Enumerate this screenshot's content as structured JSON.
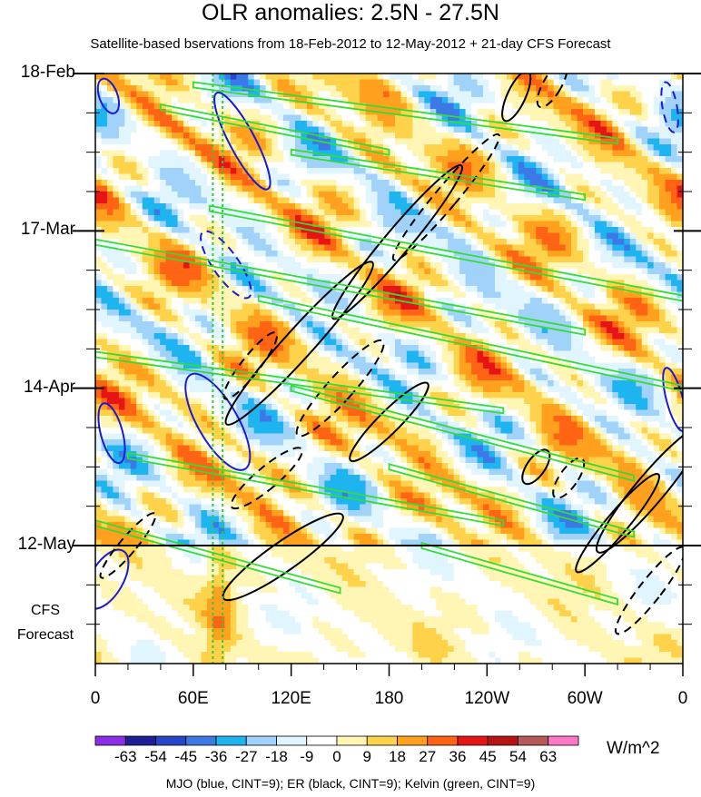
{
  "chart_data": {
    "type": "heatmap",
    "title": "OLR anomalies: 2.5N - 27.5N",
    "subtitle": "Satellite-based bservations from 18-Feb-2012 to 12-May-2012 + 21-day CFS Forecast",
    "y_tick_labels": [
      "18-Feb",
      "17-Mar",
      "14-Apr",
      "12-May"
    ],
    "forecast_label_lines": [
      "CFS",
      "Forecast"
    ],
    "x_tick_labels": [
      "0",
      "60E",
      "120E",
      "180",
      "120W",
      "60W",
      "0"
    ],
    "x_ticks_deg": [
      0,
      60,
      120,
      180,
      240,
      300,
      360
    ],
    "y_ticks_day": [
      0,
      28,
      56,
      84
    ],
    "y_range_days": [
      0,
      105
    ],
    "x_range_deg": [
      0,
      360
    ],
    "observation_end_day": 84,
    "colorbar": {
      "colors": [
        "#8c2ee6",
        "#1e1e96",
        "#2846c8",
        "#3c78e6",
        "#1eb4f0",
        "#a0d2fa",
        "#e1f5ff",
        "#ffffff",
        "#fff5b4",
        "#ffd24b",
        "#ffa01e",
        "#ff6414",
        "#e61414",
        "#b41414",
        "#b45a5a",
        "#ff78c8"
      ],
      "labels": [
        "-63",
        "-54",
        "-45",
        "-36",
        "-27",
        "-18",
        "-9",
        "0",
        "9",
        "18",
        "27",
        "36",
        "45",
        "54",
        "63"
      ],
      "unit": "W/m^2"
    },
    "overlay_lines": [
      {
        "color": "#33cc33",
        "style": "dotted",
        "lon": 72
      },
      {
        "color": "#33cc33",
        "style": "dotted",
        "lon": 78
      }
    ],
    "contours": {
      "mjo_color": "#1a1ad9",
      "er_color": "#000000",
      "kelvin_color": "#33dd33"
    },
    "footnote": "MJO (blue, CINT=9); ER (black, CINT=9); Kelvin (green, CINT=9)"
  }
}
